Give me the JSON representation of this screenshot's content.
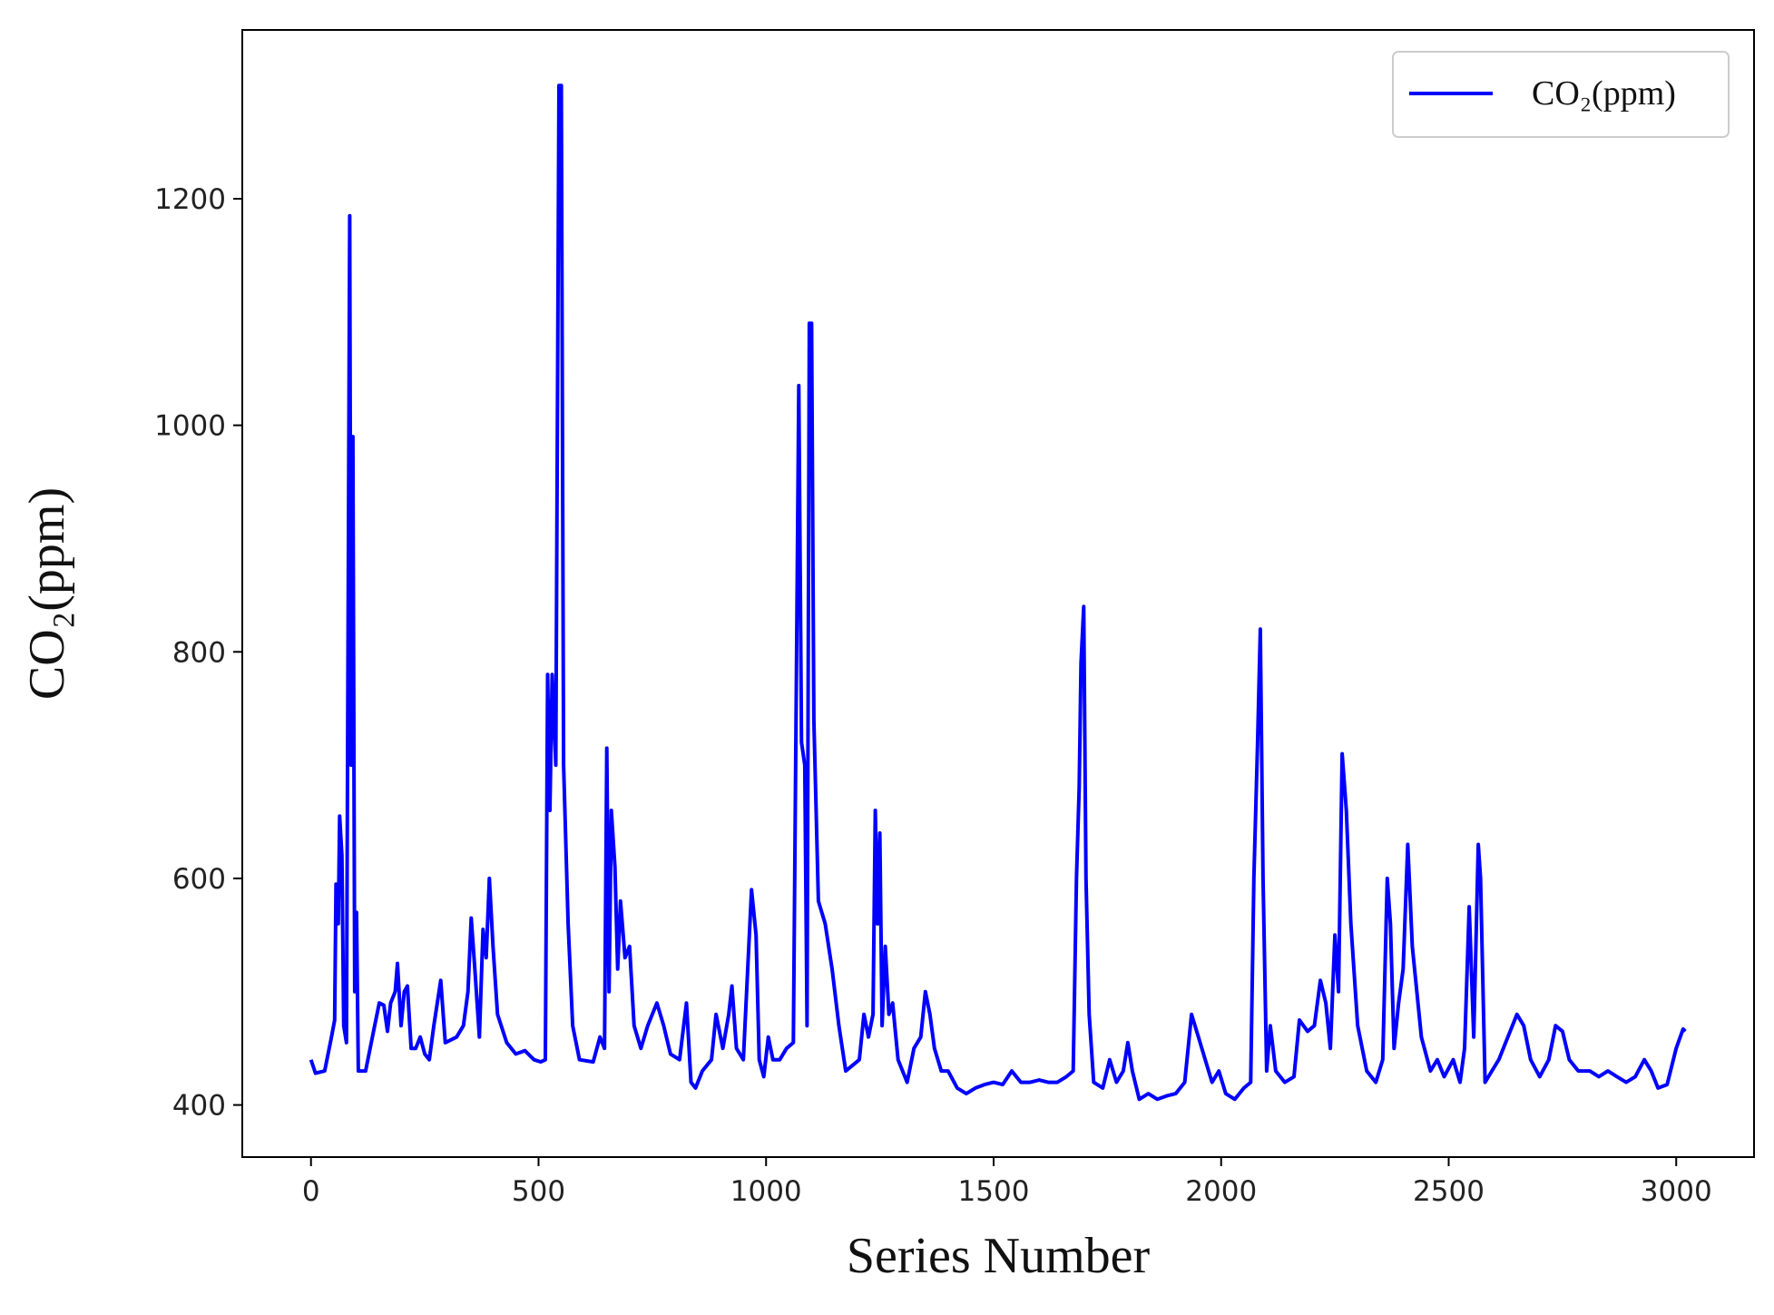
{
  "chart_data": {
    "type": "line",
    "xlabel": "Series Number",
    "ylabel": "CO₂(ppm)",
    "xlim": [
      -151,
      3171
    ],
    "ylim": [
      354,
      1349
    ],
    "xticks": [
      0,
      500,
      1000,
      1500,
      2000,
      2500,
      3000
    ],
    "yticks": [
      400,
      600,
      800,
      1000,
      1200
    ],
    "legend": "upper right",
    "x": [
      0,
      10,
      30,
      45,
      52,
      55,
      60,
      63,
      68,
      72,
      78,
      85,
      88,
      92,
      96,
      100,
      104,
      120,
      140,
      150,
      160,
      168,
      175,
      185,
      190,
      198,
      205,
      212,
      220,
      230,
      240,
      250,
      260,
      270,
      285,
      295,
      320,
      335,
      345,
      352,
      360,
      370,
      378,
      385,
      392,
      400,
      410,
      430,
      450,
      470,
      490,
      505,
      515,
      520,
      525,
      530,
      538,
      545,
      550,
      555,
      565,
      575,
      590,
      620,
      635,
      645,
      650,
      655,
      660,
      668,
      674,
      680,
      690,
      700,
      710,
      725,
      740,
      760,
      775,
      790,
      810,
      825,
      835,
      845,
      860,
      880,
      890,
      905,
      918,
      925,
      935,
      950,
      968,
      978,
      985,
      995,
      1005,
      1015,
      1030,
      1045,
      1060,
      1068,
      1072,
      1078,
      1085,
      1090,
      1095,
      1100,
      1105,
      1115,
      1130,
      1145,
      1160,
      1175,
      1190,
      1205,
      1215,
      1225,
      1235,
      1240,
      1245,
      1250,
      1255,
      1262,
      1270,
      1278,
      1290,
      1310,
      1325,
      1340,
      1350,
      1360,
      1370,
      1385,
      1400,
      1420,
      1440,
      1460,
      1480,
      1500,
      1520,
      1540,
      1560,
      1580,
      1600,
      1620,
      1640,
      1660,
      1675,
      1682,
      1688,
      1692,
      1698,
      1703,
      1710,
      1720,
      1740,
      1755,
      1770,
      1785,
      1795,
      1805,
      1820,
      1840,
      1860,
      1880,
      1900,
      1920,
      1935,
      1950,
      1965,
      1980,
      1995,
      2010,
      2030,
      2050,
      2065,
      2072,
      2080,
      2086,
      2092,
      2100,
      2108,
      2120,
      2140,
      2160,
      2172,
      2190,
      2205,
      2218,
      2230,
      2240,
      2250,
      2258,
      2266,
      2275,
      2285,
      2300,
      2320,
      2340,
      2355,
      2365,
      2372,
      2380,
      2390,
      2400,
      2410,
      2420,
      2440,
      2460,
      2475,
      2490,
      2510,
      2525,
      2535,
      2545,
      2555,
      2565,
      2570,
      2580,
      2595,
      2610,
      2630,
      2650,
      2665,
      2680,
      2700,
      2720,
      2735,
      2750,
      2765,
      2785,
      2810,
      2830,
      2850,
      2870,
      2890,
      2910,
      2930,
      2945,
      2960,
      2980,
      3000,
      3015,
      3020
    ],
    "series": [
      {
        "name": "CO₂(ppm)",
        "color": "#0000ff",
        "values": [
          440,
          428,
          430,
          460,
          475,
          595,
          560,
          655,
          620,
          470,
          455,
          1185,
          700,
          990,
          500,
          570,
          430,
          430,
          470,
          490,
          488,
          465,
          490,
          500,
          525,
          470,
          500,
          505,
          450,
          450,
          460,
          445,
          440,
          470,
          510,
          455,
          460,
          470,
          500,
          565,
          520,
          460,
          555,
          530,
          600,
          540,
          480,
          455,
          445,
          448,
          440,
          438,
          440,
          780,
          660,
          780,
          700,
          1300,
          1300,
          700,
          560,
          470,
          440,
          438,
          460,
          450,
          715,
          500,
          660,
          610,
          520,
          580,
          530,
          540,
          470,
          450,
          470,
          490,
          470,
          445,
          440,
          490,
          420,
          415,
          430,
          440,
          480,
          450,
          480,
          505,
          450,
          440,
          590,
          550,
          440,
          425,
          460,
          440,
          440,
          450,
          455,
          840,
          1035,
          720,
          700,
          470,
          1090,
          1090,
          740,
          580,
          560,
          520,
          470,
          430,
          435,
          440,
          480,
          460,
          480,
          660,
          560,
          640,
          470,
          540,
          480,
          490,
          440,
          420,
          450,
          460,
          500,
          480,
          450,
          430,
          430,
          415,
          410,
          415,
          418,
          420,
          418,
          430,
          420,
          420,
          422,
          420,
          420,
          425,
          430,
          600,
          680,
          790,
          840,
          600,
          480,
          420,
          415,
          440,
          420,
          430,
          455,
          430,
          405,
          410,
          405,
          408,
          410,
          420,
          480,
          460,
          440,
          420,
          430,
          410,
          405,
          415,
          420,
          600,
          720,
          820,
          600,
          430,
          470,
          430,
          420,
          425,
          475,
          465,
          470,
          510,
          490,
          450,
          550,
          500,
          710,
          660,
          560,
          470,
          430,
          420,
          440,
          600,
          560,
          450,
          490,
          520,
          630,
          540,
          460,
          430,
          440,
          425,
          440,
          420,
          450,
          575,
          460,
          630,
          600,
          420,
          430,
          440,
          460,
          480,
          470,
          440,
          425,
          440,
          470,
          465,
          440,
          430,
          430,
          425,
          430,
          425,
          420,
          425,
          440,
          430,
          415,
          418,
          450,
          467,
          465
        ]
      }
    ]
  }
}
